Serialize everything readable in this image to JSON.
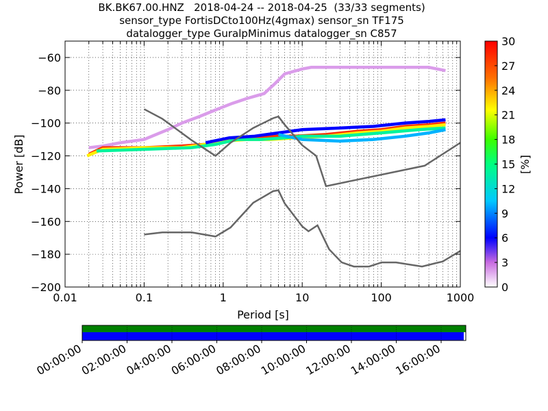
{
  "title": {
    "line1": "BK.BK67.00.HNZ   2018-04-24 -- 2018-04-25  (33/33 segments)",
    "line2": "sensor_type FortisDCto100Hz(4gmax) sensor_sn TF175",
    "line3": "datalogger_type GuralpMinimus datalogger_sn C857"
  },
  "chart_data": [
    {
      "type": "heatmap",
      "xlabel": "Period [s]",
      "ylabel": "Power [dB]",
      "x_scale": "log",
      "xlim": [
        0.01,
        1000
      ],
      "ylim": [
        -200,
        -50
      ],
      "x_ticks": [
        0.01,
        0.1,
        1,
        10,
        100,
        1000
      ],
      "x_tick_labels": [
        "0.01",
        "0.1",
        "1",
        "10",
        "100",
        "1000"
      ],
      "y_ticks": [
        -200,
        -180,
        -160,
        -140,
        -120,
        -100,
        -80,
        -60
      ],
      "y_tick_labels": [
        "−200",
        "−180",
        "−160",
        "−140",
        "−120",
        "−100",
        "−80",
        "−60"
      ],
      "grid": true,
      "colorbar": {
        "label": "[%]",
        "range": [
          0,
          30
        ],
        "ticks": [
          "0",
          "3",
          "6",
          "9",
          "12",
          "15",
          "18",
          "21",
          "24",
          "27",
          "30"
        ]
      },
      "noise_models": [
        {
          "points": [
            [
              0.1,
              -91.5
            ],
            [
              0.17,
              -97.4
            ],
            [
              0.4,
              -110.5
            ],
            [
              0.8,
              -120
            ],
            [
              1.24,
              -112
            ],
            [
              2.4,
              -103
            ],
            [
              4.3,
              -97
            ],
            [
              5,
              -96
            ],
            [
              6,
              -101
            ],
            [
              10,
              -113.5
            ],
            [
              15,
              -120
            ],
            [
              20,
              -138.5
            ],
            [
              354,
              -126
            ],
            [
              1000,
              -112
            ]
          ]
        },
        {
          "points": [
            [
              0.1,
              -168
            ],
            [
              0.17,
              -166.7
            ],
            [
              0.4,
              -166.7
            ],
            [
              0.8,
              -169.2
            ],
            [
              1.24,
              -163.7
            ],
            [
              2.4,
              -148.6
            ],
            [
              4.3,
              -141.5
            ],
            [
              5,
              -141
            ],
            [
              6,
              -149
            ],
            [
              10,
              -163
            ],
            [
              12,
              -166
            ],
            [
              15.6,
              -162.4
            ],
            [
              21.9,
              -177
            ],
            [
              31.6,
              -185
            ],
            [
              45,
              -187.5
            ],
            [
              70,
              -187.5
            ],
            [
              101,
              -185
            ],
            [
              154,
              -185
            ],
            [
              328,
              -187.5
            ],
            [
              600,
              -184.4
            ],
            [
              1000,
              -178
            ]
          ]
        }
      ],
      "psd_bands": [
        {
          "points": [
            [
              0.02,
              -115
            ],
            [
              0.03,
              -114
            ],
            [
              0.05,
              -112
            ],
            [
              0.1,
              -110
            ],
            [
              0.2,
              -104
            ],
            [
              0.3,
              -100
            ],
            [
              0.5,
              -96
            ],
            [
              0.8,
              -92
            ],
            [
              1.3,
              -88
            ],
            [
              2,
              -85
            ],
            [
              3.3,
              -82
            ],
            [
              4.5,
              -76
            ],
            [
              6,
              -70
            ],
            [
              10,
              -67
            ],
            [
              13,
              -66
            ],
            [
              400,
              -66
            ],
            [
              650,
              -68
            ]
          ],
          "percent": 2
        },
        {
          "points": [
            [
              0.02,
              -119
            ],
            [
              0.03,
              -115
            ],
            [
              0.1,
              -115
            ],
            [
              0.3,
              -114
            ],
            [
              0.6,
              -113
            ],
            [
              1,
              -111
            ],
            [
              2,
              -109
            ],
            [
              4,
              -108
            ],
            [
              8,
              -108
            ],
            [
              20,
              -107
            ],
            [
              50,
              -105
            ],
            [
              100,
              -104
            ],
            [
              200,
              -102
            ],
            [
              400,
              -101
            ],
            [
              650,
              -100
            ]
          ],
          "percent": 28
        },
        {
          "points": [
            [
              0.019,
              -120
            ],
            [
              0.03,
              -116
            ],
            [
              0.1,
              -115
            ],
            [
              0.3,
              -115
            ],
            [
              0.6,
              -113
            ],
            [
              1,
              -111
            ],
            [
              2,
              -110
            ],
            [
              4,
              -110
            ],
            [
              8,
              -109
            ],
            [
              20,
              -108
            ],
            [
              50,
              -106
            ],
            [
              100,
              -105
            ],
            [
              200,
              -103
            ],
            [
              400,
              -102
            ],
            [
              650,
              -101
            ]
          ],
          "percent": 22
        },
        {
          "points": [
            [
              0.025,
              -117
            ],
            [
              0.1,
              -116
            ],
            [
              0.4,
              -115
            ],
            [
              0.8,
              -113
            ],
            [
              1.5,
              -110
            ],
            [
              3,
              -110
            ],
            [
              6,
              -109
            ],
            [
              10,
              -108
            ],
            [
              30,
              -108
            ],
            [
              100,
              -106
            ],
            [
              300,
              -104
            ],
            [
              650,
              -103
            ]
          ],
          "percent": 14
        },
        {
          "points": [
            [
              0.6,
              -112
            ],
            [
              1.2,
              -109
            ],
            [
              2.5,
              -108
            ],
            [
              5,
              -106
            ],
            [
              10,
              -104
            ],
            [
              30,
              -103
            ],
            [
              80,
              -102
            ],
            [
              200,
              -100
            ],
            [
              400,
              -99
            ],
            [
              650,
              -98
            ]
          ],
          "percent": 6
        },
        {
          "points": [
            [
              5,
              -107
            ],
            [
              10,
              -110
            ],
            [
              30,
              -111
            ],
            [
              80,
              -110
            ],
            [
              200,
              -108
            ],
            [
              400,
              -106
            ],
            [
              650,
              -104
            ]
          ],
          "percent": 10
        }
      ]
    },
    {
      "type": "timeline",
      "labels": [
        "00:00:00",
        "02:00:00",
        "04:00:00",
        "06:00:00",
        "08:00:00",
        "10:00:00",
        "12:00:00",
        "14:00:00",
        "16:00:00"
      ],
      "colors": {
        "data": "#0000ff",
        "gaps": "#008000"
      }
    }
  ],
  "colors": {
    "noise_model": "#666666",
    "axes": "#000000"
  }
}
